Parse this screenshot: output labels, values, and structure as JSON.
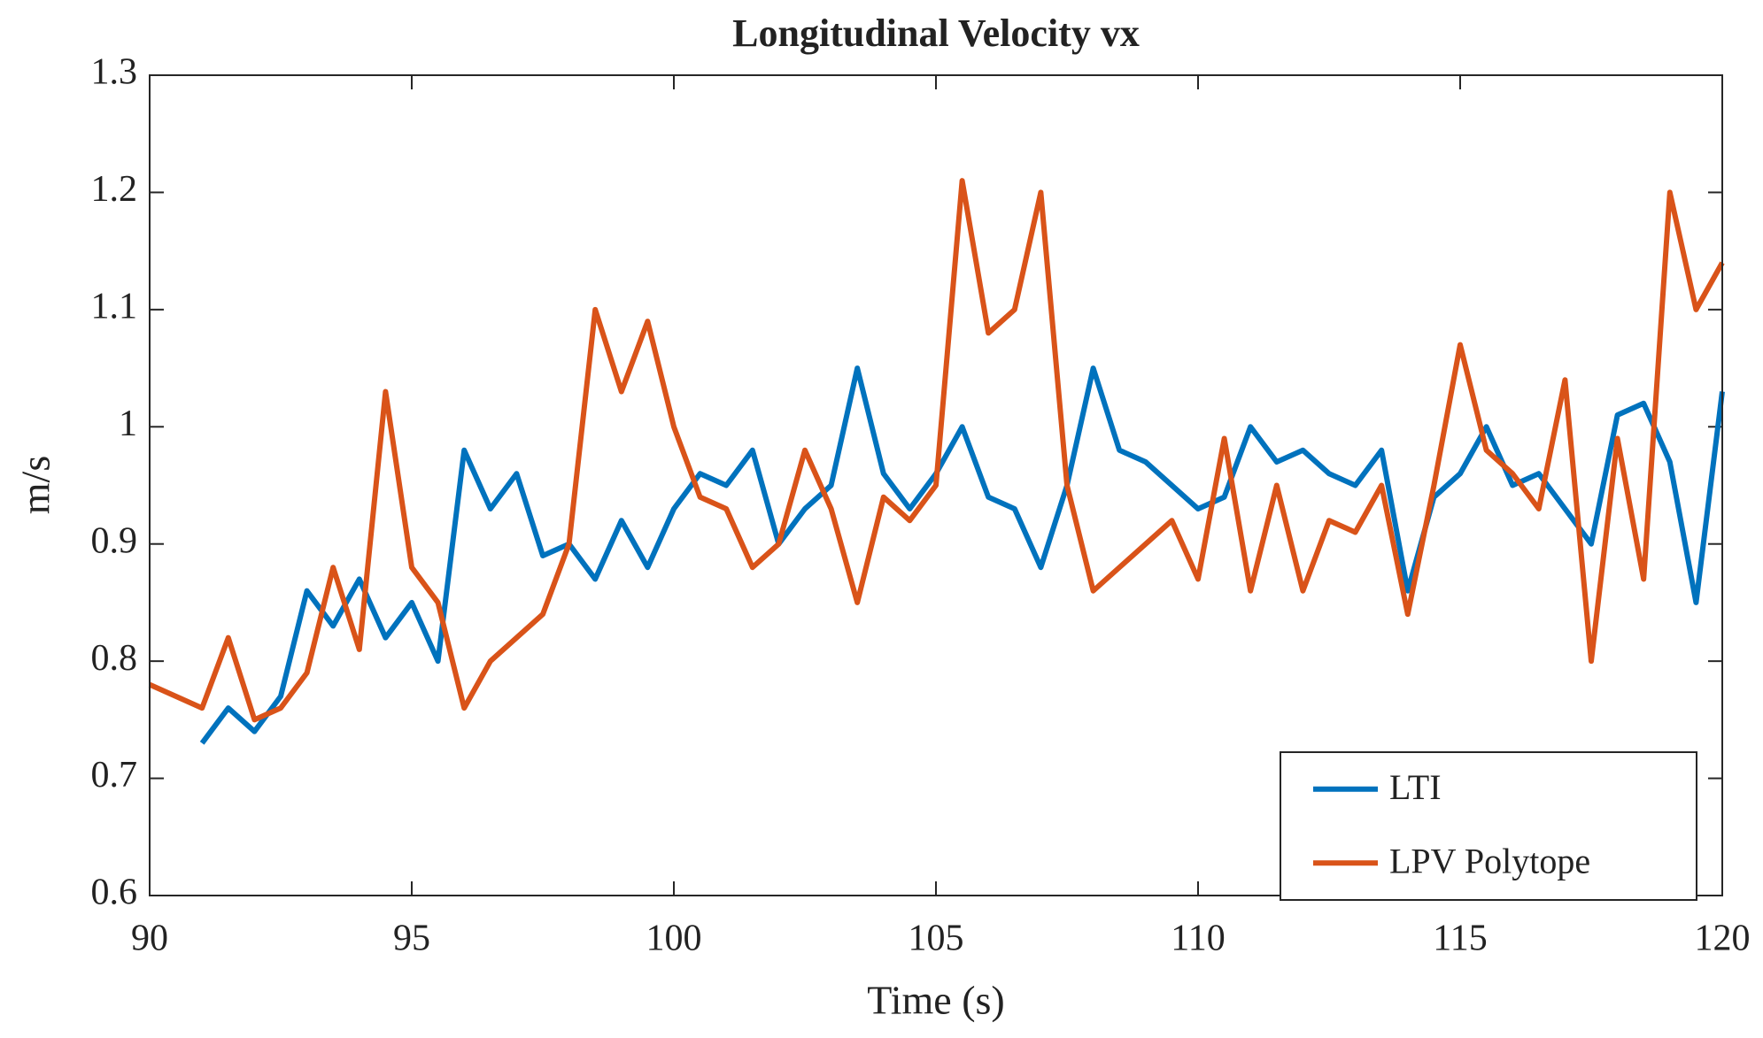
{
  "chart_data": {
    "type": "line",
    "title": "Longitudinal Velocity vx",
    "xlabel": "Time (s)",
    "ylabel": "m/s",
    "x": [
      90,
      90.5,
      91,
      91.5,
      92,
      92.5,
      93,
      93.5,
      94,
      94.5,
      95,
      95.5,
      96,
      96.5,
      97,
      97.5,
      98,
      98.5,
      99,
      99.5,
      100,
      100.5,
      101,
      101.5,
      102,
      102.5,
      103,
      103.5,
      104,
      104.5,
      105,
      105.5,
      106,
      106.5,
      107,
      107.5,
      108,
      108.5,
      109,
      109.5,
      110,
      110.5,
      111,
      111.5,
      112,
      112.5,
      113,
      113.5,
      114,
      114.5,
      115,
      115.5,
      116,
      116.5,
      117,
      117.5,
      118,
      118.5,
      119,
      119.5,
      120
    ],
    "series": [
      {
        "name": "LTI",
        "color": "#0072bd",
        "values": [
          null,
          null,
          0.73,
          0.76,
          0.74,
          0.77,
          0.86,
          0.83,
          0.87,
          0.82,
          0.85,
          0.8,
          0.98,
          0.93,
          0.96,
          0.89,
          0.9,
          0.87,
          0.92,
          0.88,
          0.93,
          0.96,
          0.95,
          0.98,
          0.9,
          0.93,
          0.95,
          1.05,
          0.96,
          0.93,
          0.96,
          1.0,
          0.94,
          0.93,
          0.88,
          0.95,
          1.05,
          0.98,
          0.97,
          0.95,
          0.93,
          0.94,
          1.0,
          0.97,
          0.98,
          0.96,
          0.95,
          0.98,
          0.86,
          0.94,
          0.96,
          1.0,
          0.95,
          0.96,
          0.93,
          0.9,
          1.01,
          1.02,
          0.97,
          0.85,
          1.03
        ]
      },
      {
        "name": "LPV Polytope",
        "color": "#d95319",
        "values": [
          0.78,
          0.77,
          0.76,
          0.82,
          0.75,
          0.76,
          0.79,
          0.88,
          0.81,
          1.03,
          0.88,
          0.85,
          0.76,
          0.8,
          0.82,
          0.84,
          0.9,
          1.1,
          1.03,
          1.09,
          1.0,
          0.94,
          0.93,
          0.88,
          0.9,
          0.98,
          0.93,
          0.85,
          0.94,
          0.92,
          0.95,
          1.21,
          1.08,
          1.1,
          1.2,
          0.95,
          0.86,
          0.88,
          0.9,
          0.92,
          0.87,
          0.99,
          0.86,
          0.95,
          0.86,
          0.92,
          0.91,
          0.95,
          0.84,
          0.95,
          1.07,
          0.98,
          0.96,
          0.93,
          1.04,
          0.8,
          0.99,
          0.87,
          1.2,
          1.1,
          1.14
        ]
      }
    ],
    "xlim": [
      90,
      120
    ],
    "xticks": [
      90,
      95,
      100,
      105,
      110,
      115,
      120
    ],
    "ylim": [
      0.6,
      1.3
    ],
    "yticks": [
      0.6,
      0.7,
      0.8,
      0.9,
      1,
      1.1,
      1.2,
      1.3
    ],
    "legend": "lower right",
    "grid": false
  }
}
